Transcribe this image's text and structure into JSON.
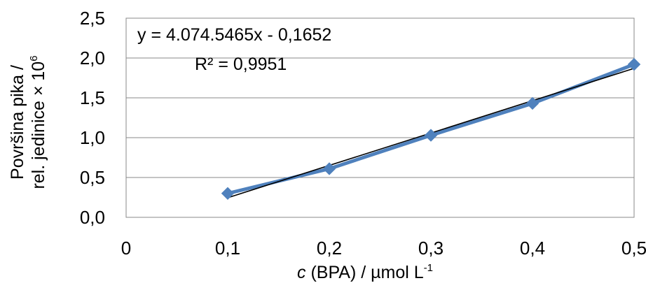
{
  "chart_data": {
    "type": "line",
    "x": [
      0.1,
      0.2,
      0.3,
      0.4,
      0.5
    ],
    "series": [
      {
        "values": [
          0.3,
          0.61,
          1.03,
          1.43,
          1.92
        ],
        "color": "#4f81bd",
        "marker": "diamond"
      }
    ],
    "trendline": {
      "type": "linear",
      "color": "#000000"
    },
    "annotations": {
      "equation": "y = 4.074.5465x - 0,1652",
      "r_squared": "R² = 0,9951"
    },
    "xlabel": {
      "italic": "c",
      "text": " (BPA) / µmol L",
      "superscript": "-1"
    },
    "ylabel": {
      "line1": "Površina pika /",
      "line2": "rel. jedinice  × 10",
      "superscript": "6"
    },
    "xlim": [
      0,
      0.5
    ],
    "ylim": [
      0,
      2.5
    ],
    "x_ticks": [
      "0",
      "0,1",
      "0,2",
      "0,3",
      "0,4",
      "0,5"
    ],
    "y_ticks": [
      "0,0",
      "0,5",
      "1,0",
      "1,5",
      "2,0",
      "2,5"
    ],
    "grid": true,
    "legend": "none"
  }
}
